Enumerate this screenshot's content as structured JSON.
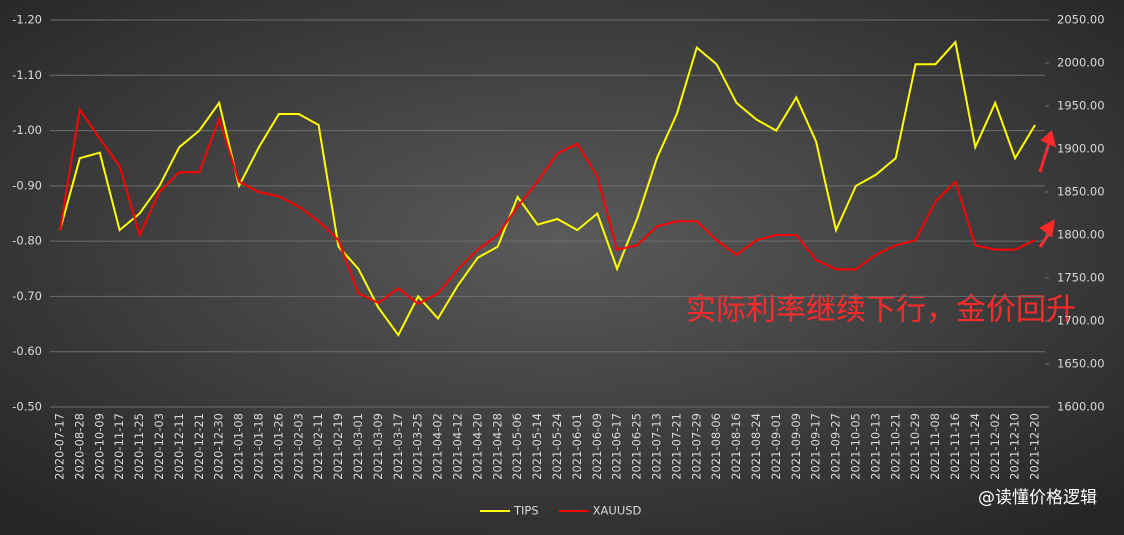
{
  "chart_data": {
    "type": "line",
    "categories": [
      "2020-07-17",
      "2020-08-28",
      "2020-10-09",
      "2020-11-17",
      "2020-11-25",
      "2020-12-03",
      "2020-12-11",
      "2020-12-21",
      "2020-12-30",
      "2021-01-08",
      "2021-01-18",
      "2021-01-26",
      "2021-02-03",
      "2021-02-11",
      "2021-02-19",
      "2021-03-01",
      "2021-03-09",
      "2021-03-17",
      "2021-03-25",
      "2021-04-02",
      "2021-04-12",
      "2021-04-20",
      "2021-04-28",
      "2021-05-06",
      "2021-05-14",
      "2021-05-24",
      "2021-06-01",
      "2021-06-09",
      "2021-06-17",
      "2021-06-25",
      "2021-07-13",
      "2021-07-21",
      "2021-07-29",
      "2021-08-06",
      "2021-08-16",
      "2021-08-24",
      "2021-09-01",
      "2021-09-09",
      "2021-09-17",
      "2021-09-27",
      "2021-10-05",
      "2021-10-13",
      "2021-10-21",
      "2021-10-29",
      "2021-11-08",
      "2021-11-16",
      "2021-11-24",
      "2021-12-02",
      "2021-12-10",
      "2021-12-20"
    ],
    "series": [
      {
        "name": "TIPS",
        "color": "#ffff00",
        "values": [
          -0.82,
          -0.95,
          -0.96,
          -0.82,
          -0.85,
          -0.9,
          -0.97,
          -1.0,
          -1.05,
          -0.9,
          -0.97,
          -1.03,
          -1.03,
          -1.01,
          -0.79,
          -0.75,
          -0.68,
          -0.63,
          -0.7,
          -0.66,
          -0.72,
          -0.77,
          -0.79,
          -0.88,
          -0.83,
          -0.84,
          -0.82,
          -0.85,
          -0.75,
          -0.84,
          -0.95,
          -1.03,
          -1.15,
          -1.12,
          -1.05,
          -1.02,
          -1.0,
          -1.06,
          -0.98,
          -0.82,
          -0.9,
          -0.92,
          -0.95,
          -1.12,
          -1.12,
          -1.16,
          -0.97,
          -1.05,
          -0.95,
          -1.01
        ]
      },
      {
        "name": "XAUUSD",
        "color": "#ff0000",
        "axis": "y2",
        "values": [
          1805,
          1946,
          1912,
          1880,
          1800,
          1850,
          1873,
          1873,
          1935,
          1862,
          1850,
          1845,
          1833,
          1816,
          1794,
          1732,
          1721,
          1738,
          1720,
          1732,
          1760,
          1783,
          1800,
          1833,
          1862,
          1895,
          1906,
          1868,
          1783,
          1788,
          1810,
          1816,
          1816,
          1794,
          1777,
          1794,
          1800,
          1800,
          1771,
          1760,
          1760,
          1777,
          1788,
          1794,
          1839,
          1862,
          1788,
          1783,
          1783,
          1794
        ]
      }
    ],
    "ylim": [
      -1.2,
      -0.5
    ],
    "y_inverted": true,
    "yticks": [
      {
        "value": -1.2,
        "label": "-1.20"
      },
      {
        "value": -1.1,
        "label": "-1.10"
      },
      {
        "value": -1.0,
        "label": "-1.00"
      },
      {
        "value": -0.9,
        "label": "-0.90"
      },
      {
        "value": -0.8,
        "label": "-0.80"
      },
      {
        "value": -0.7,
        "label": "-0.70"
      },
      {
        "value": -0.6,
        "label": "-0.60"
      },
      {
        "value": -0.5,
        "label": "-0.50"
      }
    ],
    "y2lim": [
      1600,
      2050
    ],
    "y2ticks": [
      {
        "value": 1600,
        "label": "1600.00"
      },
      {
        "value": 1650,
        "label": "1650.00"
      },
      {
        "value": 1700,
        "label": "1700.00"
      },
      {
        "value": 1750,
        "label": "1750.00"
      },
      {
        "value": 1800,
        "label": "1800.00"
      },
      {
        "value": 1850,
        "label": "1850.00"
      },
      {
        "value": 1900,
        "label": "1900.00"
      },
      {
        "value": 1950,
        "label": "1950.00"
      },
      {
        "value": 2000,
        "label": "2000.00"
      },
      {
        "value": 2050,
        "label": "2050.00"
      }
    ],
    "grid": true,
    "legend": "bottom",
    "annotation": "实际利率继续下行，金价回升",
    "watermark": "@读懂价格逻辑"
  }
}
